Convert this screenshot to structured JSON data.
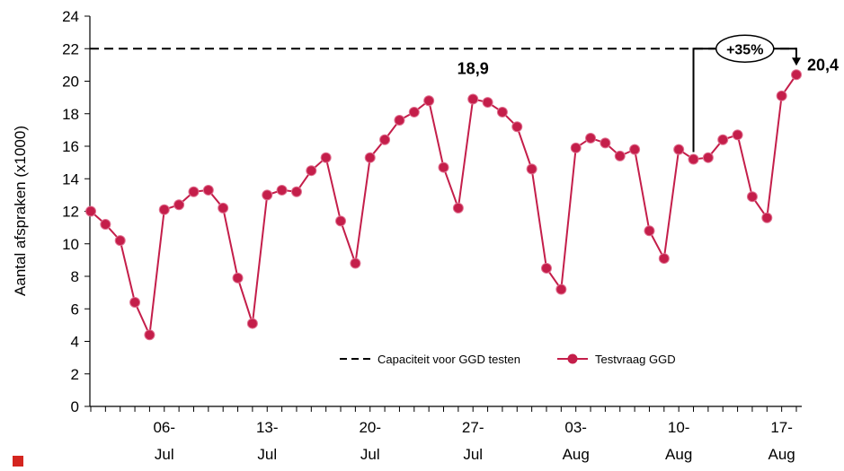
{
  "chart_data": {
    "type": "line",
    "y_label": "Aantal afspraken (x1000)",
    "categories": [
      null,
      null,
      null,
      null,
      null,
      "06-\nJul",
      null,
      null,
      null,
      null,
      null,
      null,
      "13-\nJul",
      null,
      null,
      null,
      null,
      null,
      null,
      "20-\nJul",
      null,
      null,
      null,
      null,
      null,
      null,
      "27-\nJul",
      null,
      null,
      null,
      null,
      null,
      null,
      "03-\nAug",
      null,
      null,
      null,
      null,
      null,
      null,
      "10-\nAug",
      null,
      null,
      null,
      null,
      null,
      null,
      "17-\nAug",
      null
    ],
    "series": [
      {
        "name": "Testvraag GGD",
        "color": "#c41e4a",
        "values": [
          12.0,
          11.2,
          10.2,
          6.4,
          4.4,
          12.1,
          12.4,
          13.2,
          13.3,
          12.2,
          7.9,
          5.1,
          13.0,
          13.3,
          13.2,
          14.5,
          15.3,
          11.4,
          8.8,
          15.3,
          16.4,
          17.6,
          18.1,
          18.8,
          14.7,
          12.2,
          18.9,
          18.7,
          18.1,
          17.2,
          14.6,
          8.5,
          7.2,
          15.9,
          16.5,
          16.2,
          15.4,
          15.8,
          10.8,
          9.1,
          15.8,
          15.2,
          15.3,
          16.4,
          16.7,
          12.9,
          11.6,
          19.1,
          20.4
        ],
        "value_labels": [
          null,
          null,
          null,
          null,
          null,
          null,
          null,
          null,
          null,
          null,
          null,
          null,
          null,
          null,
          null,
          null,
          null,
          null,
          null,
          null,
          null,
          null,
          null,
          null,
          null,
          null,
          "18,9",
          null,
          null,
          null,
          null,
          null,
          null,
          null,
          null,
          null,
          null,
          null,
          null,
          null,
          null,
          null,
          null,
          null,
          null,
          null,
          null,
          null,
          "20,4"
        ]
      }
    ],
    "reference_line": {
      "name": "Capaciteit voor GGD testen",
      "value": 22,
      "color": "#000000",
      "style": "dashed"
    },
    "annotation": {
      "text": "+35%",
      "from_index": 41,
      "to_index": 48
    },
    "ylim": [
      0,
      24
    ],
    "yticks": [
      0,
      2,
      4,
      6,
      8,
      10,
      12,
      14,
      16,
      18,
      20,
      22,
      24
    ],
    "legend": "bottom"
  }
}
